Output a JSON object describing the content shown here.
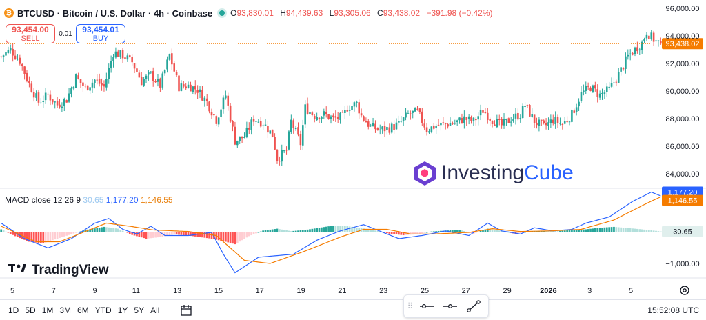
{
  "header": {
    "symbol_icon": "bitcoin-icon",
    "title": "BTCUSD · Bitcoin / U.S. Dollar · 4h · Coinbase",
    "ohlc": [
      {
        "k": "O",
        "v": "93,830.01"
      },
      {
        "k": "H",
        "v": "94,439.63"
      },
      {
        "k": "L",
        "v": "93,305.06"
      },
      {
        "k": "C",
        "v": "93,438.02"
      }
    ],
    "change": "−391.98 (−0.42%)"
  },
  "trade": {
    "sell_price": "93,454.00",
    "sell_label": "SELL",
    "spread": "0.01",
    "buy_price": "93,454.01",
    "buy_label": "BUY"
  },
  "colors": {
    "up": "#26a69a",
    "down": "#ef5350",
    "macd": "#2962ff",
    "signal": "#f57c00",
    "accent": "#2962ff"
  },
  "chart_data": [
    {
      "type": "candlestick",
      "title": "BTCUSD · Bitcoin / U.S. Dollar · 4h · Coinbase",
      "ylim": [
        83000,
        96500
      ],
      "y_ticks": [
        96000,
        94000,
        92000,
        90000,
        88000,
        86000,
        84000
      ],
      "y_tick_labels": [
        "96,000.00",
        "94,000.00",
        "92,000.00",
        "90,000.00",
        "88,000.00",
        "86,000.00",
        "84,000.00"
      ],
      "x_labels": [
        "5",
        "7",
        "9",
        "11",
        "13",
        "15",
        "17",
        "19",
        "21",
        "23",
        "25",
        "27",
        "29",
        "2026",
        "3",
        "5"
      ],
      "last_price": 93438.02,
      "last_price_label": "93,438.02",
      "close_path": [
        [
          0,
          92500
        ],
        [
          4,
          93000
        ],
        [
          8,
          92200
        ],
        [
          12,
          90500
        ],
        [
          16,
          89200
        ],
        [
          20,
          89700
        ],
        [
          24,
          89000
        ],
        [
          28,
          89400
        ],
        [
          32,
          91000
        ],
        [
          36,
          90200
        ],
        [
          40,
          90800
        ],
        [
          44,
          90300
        ],
        [
          48,
          92800
        ],
        [
          52,
          92600
        ],
        [
          56,
          92100
        ],
        [
          60,
          90700
        ],
        [
          64,
          91200
        ],
        [
          68,
          90400
        ],
        [
          72,
          92600
        ],
        [
          76,
          90300
        ],
        [
          80,
          90400
        ],
        [
          84,
          90100
        ],
        [
          88,
          89200
        ],
        [
          92,
          87900
        ],
        [
          96,
          89700
        ],
        [
          100,
          86400
        ],
        [
          104,
          86700
        ],
        [
          108,
          88000
        ],
        [
          112,
          87700
        ],
        [
          116,
          86800
        ],
        [
          118,
          85100
        ],
        [
          122,
          85700
        ],
        [
          124,
          87800
        ],
        [
          128,
          86200
        ],
        [
          130,
          88800
        ],
        [
          134,
          88200
        ],
        [
          138,
          88300
        ],
        [
          142,
          88000
        ],
        [
          146,
          88100
        ],
        [
          148,
          88800
        ],
        [
          152,
          89100
        ],
        [
          154,
          88200
        ],
        [
          158,
          87400
        ],
        [
          162,
          87200
        ],
        [
          166,
          87300
        ],
        [
          170,
          87600
        ],
        [
          174,
          88300
        ],
        [
          178,
          88500
        ],
        [
          182,
          87200
        ],
        [
          186,
          87500
        ],
        [
          190,
          87600
        ],
        [
          194,
          87700
        ],
        [
          198,
          88000
        ],
        [
          202,
          87800
        ],
        [
          206,
          88600
        ],
        [
          210,
          87900
        ],
        [
          214,
          87500
        ],
        [
          218,
          88000
        ],
        [
          222,
          88300
        ],
        [
          224,
          89000
        ],
        [
          228,
          87800
        ],
        [
          232,
          87400
        ],
        [
          236,
          87900
        ],
        [
          240,
          87600
        ],
        [
          244,
          88300
        ],
        [
          248,
          89800
        ],
        [
          252,
          90300
        ],
        [
          256,
          89700
        ],
        [
          260,
          90100
        ],
        [
          264,
          91200
        ],
        [
          268,
          92500
        ],
        [
          272,
          93200
        ],
        [
          274,
          93500
        ],
        [
          276,
          94300
        ],
        [
          278,
          93900
        ],
        [
          280,
          93600
        ],
        [
          282,
          93438
        ]
      ],
      "n_bars": 283
    },
    {
      "type": "macd",
      "title": "MACD close 12 26 9",
      "values": {
        "histogram": "30.65",
        "macd": "1,177.20",
        "signal": "1,146.55"
      },
      "y_tick_labels": [
        "−1,000.00"
      ],
      "ylim": [
        -1400,
        1400
      ],
      "macd_path": [
        [
          0,
          300
        ],
        [
          10,
          -200
        ],
        [
          20,
          -500
        ],
        [
          30,
          -200
        ],
        [
          40,
          300
        ],
        [
          46,
          450
        ],
        [
          52,
          100
        ],
        [
          58,
          -50
        ],
        [
          64,
          200
        ],
        [
          70,
          -100
        ],
        [
          80,
          -100
        ],
        [
          90,
          0
        ],
        [
          95,
          -700
        ],
        [
          100,
          -1300
        ],
        [
          110,
          -800
        ],
        [
          125,
          -700
        ],
        [
          135,
          -250
        ],
        [
          145,
          50
        ],
        [
          155,
          250
        ],
        [
          160,
          100
        ],
        [
          170,
          -200
        ],
        [
          180,
          -100
        ],
        [
          190,
          50
        ],
        [
          200,
          -100
        ],
        [
          208,
          300
        ],
        [
          214,
          50
        ],
        [
          222,
          -50
        ],
        [
          228,
          150
        ],
        [
          236,
          50
        ],
        [
          244,
          100
        ],
        [
          250,
          300
        ],
        [
          260,
          500
        ],
        [
          270,
          1000
        ],
        [
          278,
          1300
        ],
        [
          282,
          1177
        ]
      ],
      "signal_path": [
        [
          0,
          200
        ],
        [
          15,
          -300
        ],
        [
          25,
          -300
        ],
        [
          35,
          0
        ],
        [
          45,
          300
        ],
        [
          55,
          200
        ],
        [
          65,
          80
        ],
        [
          80,
          30
        ],
        [
          92,
          -100
        ],
        [
          104,
          -900
        ],
        [
          115,
          -1000
        ],
        [
          130,
          -600
        ],
        [
          145,
          -150
        ],
        [
          155,
          100
        ],
        [
          165,
          100
        ],
        [
          175,
          -50
        ],
        [
          185,
          -50
        ],
        [
          200,
          0
        ],
        [
          210,
          120
        ],
        [
          222,
          30
        ],
        [
          235,
          50
        ],
        [
          248,
          100
        ],
        [
          262,
          400
        ],
        [
          275,
          900
        ],
        [
          282,
          1147
        ]
      ],
      "hist_path": [
        [
          0,
          100
        ],
        [
          6,
          -120
        ],
        [
          12,
          -300
        ],
        [
          18,
          -350
        ],
        [
          24,
          -200
        ],
        [
          30,
          -60
        ],
        [
          36,
          80
        ],
        [
          44,
          180
        ],
        [
          50,
          120
        ],
        [
          56,
          -80
        ],
        [
          62,
          -200
        ],
        [
          68,
          -150
        ],
        [
          74,
          -60
        ],
        [
          82,
          -120
        ],
        [
          90,
          -200
        ],
        [
          96,
          -300
        ],
        [
          100,
          -380
        ],
        [
          106,
          -120
        ],
        [
          112,
          60
        ],
        [
          118,
          120
        ],
        [
          124,
          40
        ],
        [
          130,
          80
        ],
        [
          136,
          150
        ],
        [
          142,
          220
        ],
        [
          148,
          200
        ],
        [
          154,
          140
        ],
        [
          160,
          60
        ],
        [
          166,
          -40
        ],
        [
          172,
          -90
        ],
        [
          178,
          -60
        ],
        [
          184,
          30
        ],
        [
          190,
          60
        ],
        [
          196,
          80
        ],
        [
          202,
          -30
        ],
        [
          208,
          120
        ],
        [
          214,
          50
        ],
        [
          220,
          -50
        ],
        [
          226,
          30
        ],
        [
          232,
          50
        ],
        [
          238,
          40
        ],
        [
          244,
          80
        ],
        [
          250,
          100
        ],
        [
          256,
          150
        ],
        [
          262,
          180
        ],
        [
          268,
          140
        ],
        [
          274,
          100
        ],
        [
          280,
          50
        ],
        [
          282,
          30
        ]
      ]
    }
  ],
  "watermarks": {
    "tradingview": "TradingView",
    "investingcube_1": "Investing",
    "investingcube_2": "Cube"
  },
  "bottom_bar": {
    "ranges": [
      "1D",
      "5D",
      "1M",
      "3M",
      "6M",
      "YTD",
      "1Y",
      "5Y",
      "All"
    ],
    "clock": "15:52:08 UTC"
  },
  "draw_toolbar": {
    "tools": [
      "horizontal-line-icon",
      "horizontal-ray-icon",
      "trend-line-icon"
    ]
  }
}
